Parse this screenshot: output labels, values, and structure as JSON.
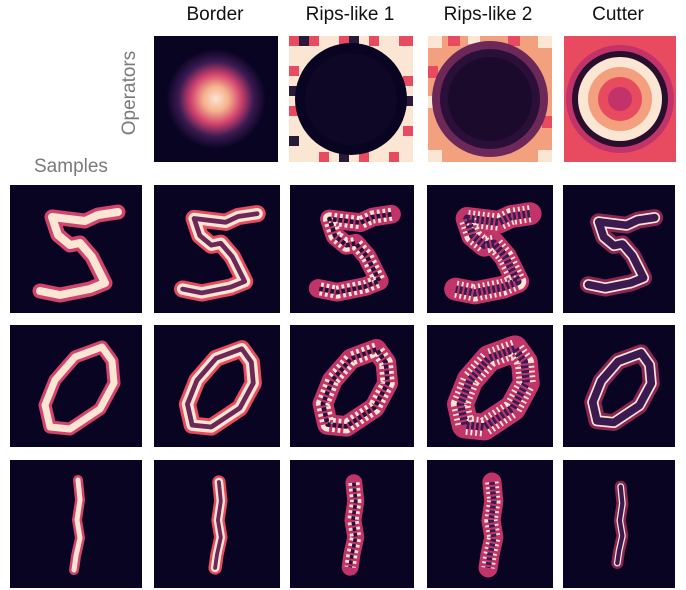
{
  "column_headers": [
    "Border",
    "Rips-like 1",
    "Rips-like 2",
    "Cutter"
  ],
  "row_label": "Operators",
  "column_label": "Samples",
  "sample_digits": [
    "5",
    "0",
    "1"
  ],
  "colormap": {
    "dark": "#080422",
    "mid": "#d3436e",
    "light": "#fbe5d3"
  }
}
